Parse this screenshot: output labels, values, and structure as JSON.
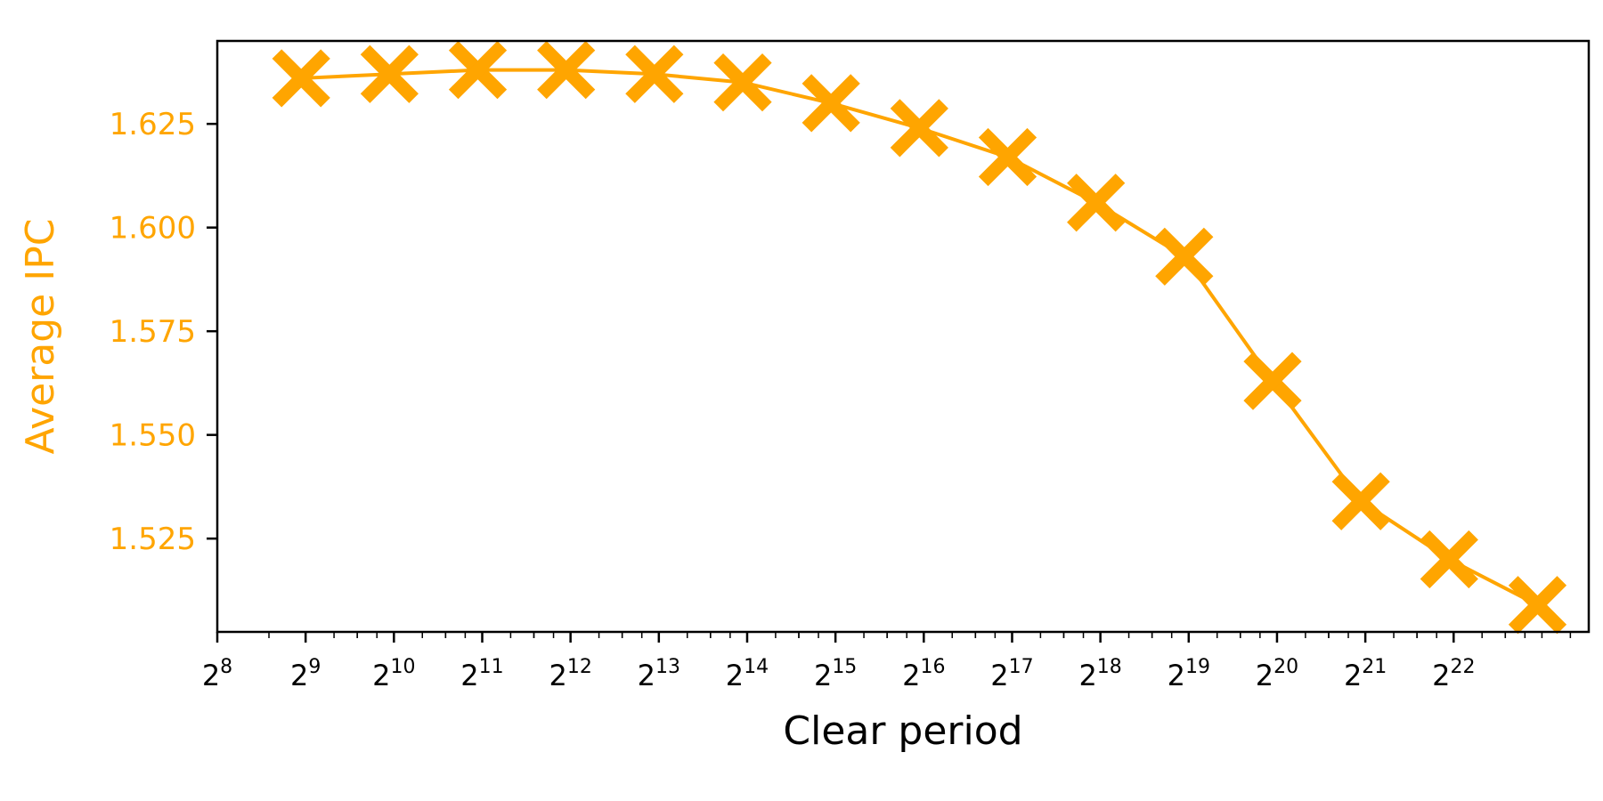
{
  "chart_data": {
    "type": "line",
    "title": "",
    "xlabel": "Clear period",
    "ylabel": "Average IPC",
    "x_scale": "log2",
    "x_tick_base": "2",
    "x_tick_exponents": [
      "8",
      "9",
      "10",
      "11",
      "12",
      "13",
      "14",
      "15",
      "16",
      "17",
      "18",
      "19",
      "20",
      "21",
      "22"
    ],
    "y_ticks": [
      "1.525",
      "1.550",
      "1.575",
      "1.600",
      "1.625"
    ],
    "y_tick_values": [
      1.525,
      1.55,
      1.575,
      1.6,
      1.625
    ],
    "ylim": [
      1.5025,
      1.645
    ],
    "xlim_exponents": [
      8,
      23.53
    ],
    "grid": false,
    "colors": {
      "series": "#FFA500",
      "ylabel": "#FFA500",
      "yticks": "#FFA500",
      "axis": "#000000"
    },
    "marker": "X",
    "series": [
      {
        "x_exponents": [
          8.95,
          9.95,
          10.95,
          11.95,
          12.95,
          13.95,
          14.95,
          15.95,
          16.95,
          17.95,
          18.95,
          19.95,
          20.95,
          21.95,
          22.95
        ],
        "values": [
          1.636,
          1.637,
          1.638,
          1.638,
          1.637,
          1.635,
          1.63,
          1.624,
          1.617,
          1.606,
          1.593,
          1.563,
          1.534,
          1.52,
          1.509
        ]
      }
    ]
  }
}
